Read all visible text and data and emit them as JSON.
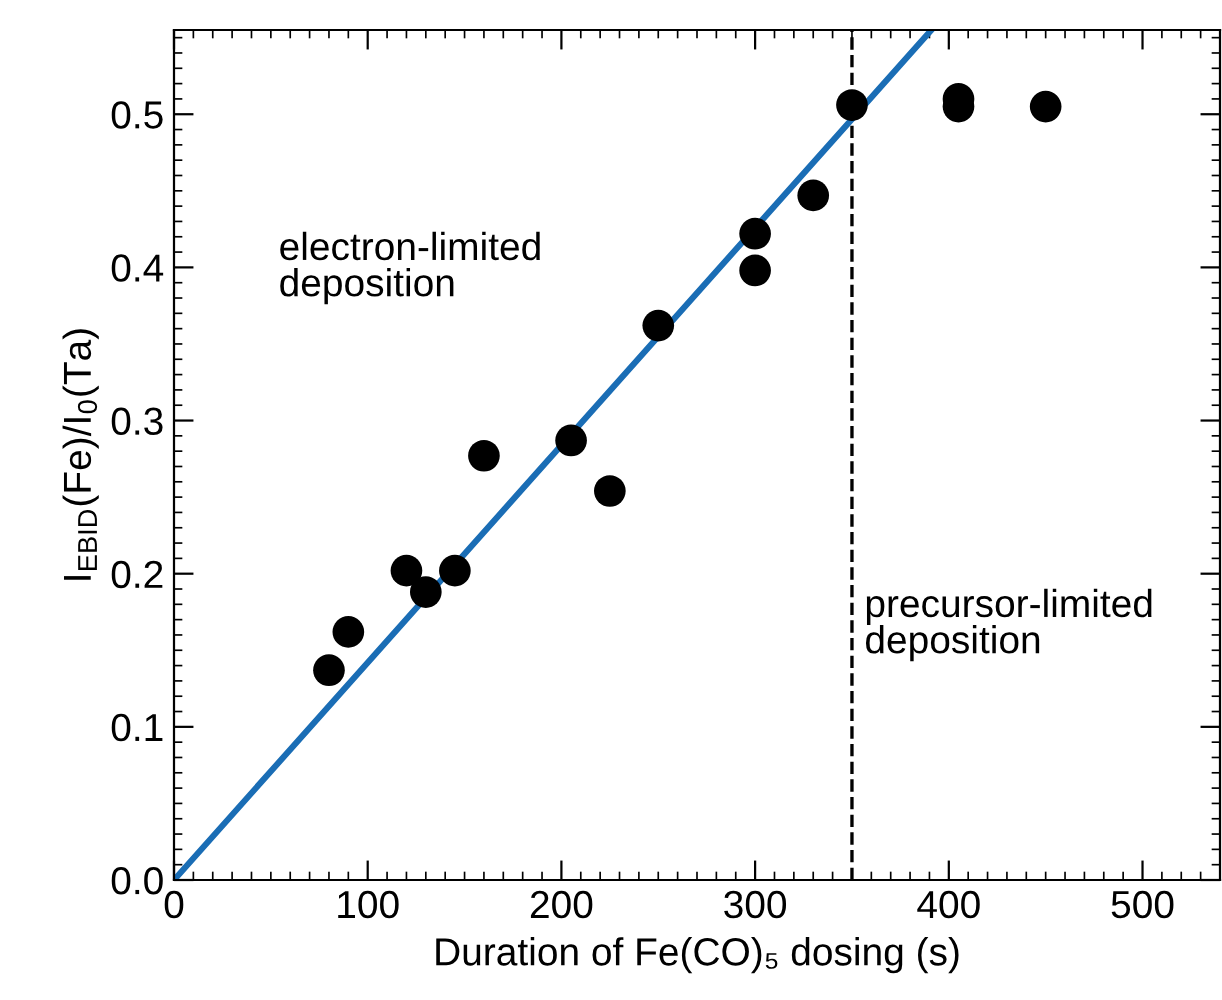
{
  "chart_data": {
    "type": "scatter",
    "xlabel": "Duration of Fe(CO)₅ dosing (s)",
    "ylabel": "I$_{EBID}$(Fe)/I$_{0}$(Ta)",
    "series": [
      {
        "color": "#000000",
        "marker": "circle",
        "x": [
          80,
          90,
          120,
          130,
          145,
          160,
          205,
          225,
          250,
          300,
          300,
          330,
          350,
          405,
          405,
          450
        ],
        "values": [
          0.137,
          0.162,
          0.202,
          0.188,
          0.202,
          0.277,
          0.287,
          0.254,
          0.362,
          0.422,
          0.398,
          0.447,
          0.506,
          0.51,
          0.505,
          0.505
        ]
      },
      {
        "type": "line",
        "color": "#1a6db5",
        "x": [
          0,
          391
        ],
        "values": [
          0,
          0.555
        ]
      }
    ],
    "xlim": [
      0,
      540
    ],
    "ylim": [
      0,
      0.555
    ],
    "xticks": [
      0,
      100,
      200,
      300,
      400,
      500
    ],
    "yticks": [
      {
        "value": 0,
        "label": "0.0"
      },
      0.1,
      0.2,
      0.3,
      0.4,
      0.5
    ],
    "ref_lines": [
      {
        "axis": "x",
        "value": 350,
        "color": "#000000",
        "line_style": "dashed"
      }
    ],
    "annotations": [
      "electron-limited\ndeposition",
      "precursor-limited\ndeposition"
    ],
    "grid": false,
    "legend": false
  }
}
